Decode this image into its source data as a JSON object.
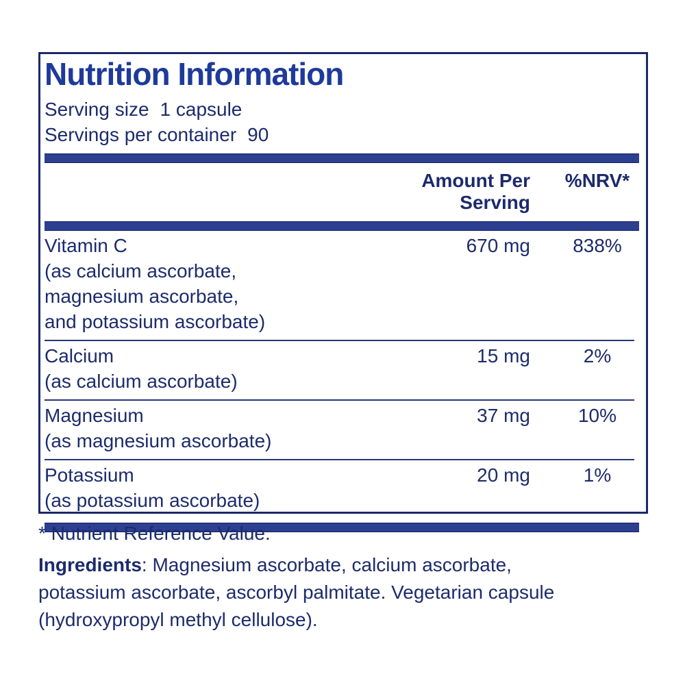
{
  "panel": {
    "title": "Nutrition Information",
    "serving_size_label": "Serving size",
    "serving_size_value": "1 capsule",
    "servings_per_container_label": "Servings per container",
    "servings_per_container_value": "90",
    "columns": {
      "amount_header": "Amount Per Serving",
      "nrv_header": "%NRV*"
    },
    "rows": [
      {
        "name": "Vitamin C",
        "detail": "(as calcium ascorbate,\nmagnesium ascorbate,\nand potassium ascorbate)",
        "amount": "670 mg",
        "nrv": "838%"
      },
      {
        "name": "Calcium",
        "detail": "(as calcium ascorbate)",
        "amount": "15 mg",
        "nrv": "2%"
      },
      {
        "name": "Magnesium",
        "detail": "(as magnesium ascorbate)",
        "amount": "37 mg",
        "nrv": "10%"
      },
      {
        "name": "Potassium",
        "detail": "(as potassium ascorbate)",
        "amount": "20 mg",
        "nrv": "1%"
      }
    ]
  },
  "footnote": "* Nutrient Reference Value.",
  "ingredients": {
    "label": "Ingredients",
    "text": ": Magnesium ascorbate, calcium ascorbate,\npotassium ascorbate, ascorbyl palmitate. Vegetarian capsule\n(hydroxypropyl methyl cellulose)."
  },
  "colors": {
    "navy_text": "#1c2b6c",
    "title_blue": "#1e3a9a",
    "bar_fill": "#2c3f90",
    "panel_border": "#1b296a"
  }
}
